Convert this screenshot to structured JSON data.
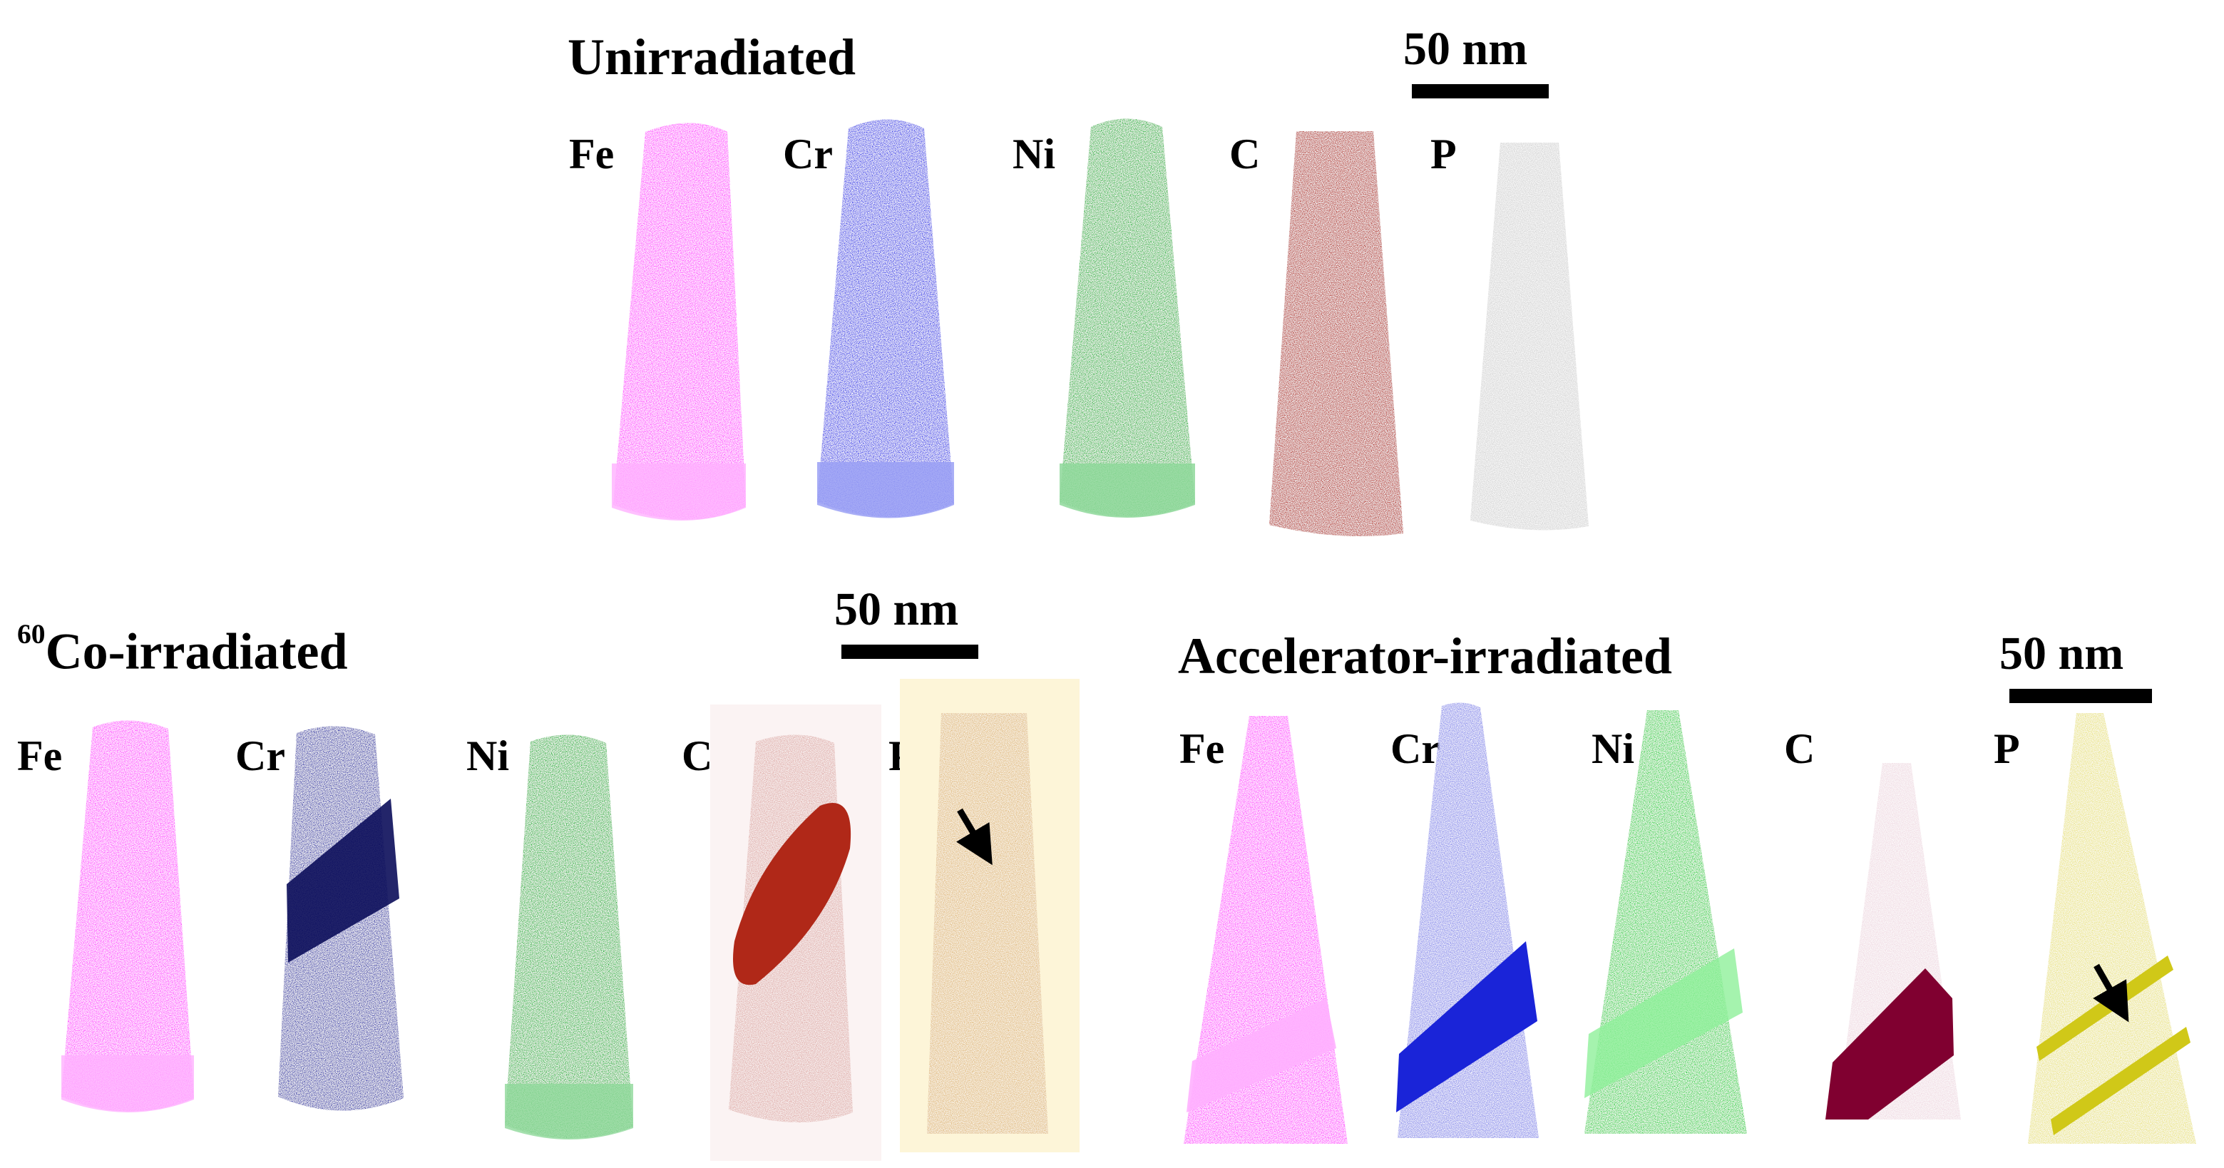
{
  "colors": {
    "Fe": "#ff33ff",
    "Cr_unirr": "#2a2ee8",
    "Cr_co": "#1c1f90",
    "Cr_acc": "#2020c8",
    "Ni": "#18b030",
    "C_unirr": "#a8201a",
    "C_co": "#b02818",
    "C_acc": "#800030",
    "P_unirr": "#bcbcbc",
    "P_co": "#d8a860",
    "P_acc": "#d8d020",
    "P_bg": "#fdf5d8",
    "C_bg": "#fbf3f3"
  },
  "panels": [
    {
      "title": "Unirradiated",
      "scale_bar": "50 nm",
      "elements": [
        "Fe",
        "Cr",
        "Ni",
        "C",
        "P"
      ]
    },
    {
      "title_sup": "60",
      "title": "Co-irradiated",
      "scale_bar": "50 nm",
      "elements": [
        "Fe",
        "Cr",
        "Ni",
        "C",
        "P"
      ]
    },
    {
      "title": "Accelerator-irradiated",
      "scale_bar": "50 nm",
      "elements": [
        "Fe",
        "Cr",
        "Ni",
        "C",
        "P"
      ]
    }
  ]
}
